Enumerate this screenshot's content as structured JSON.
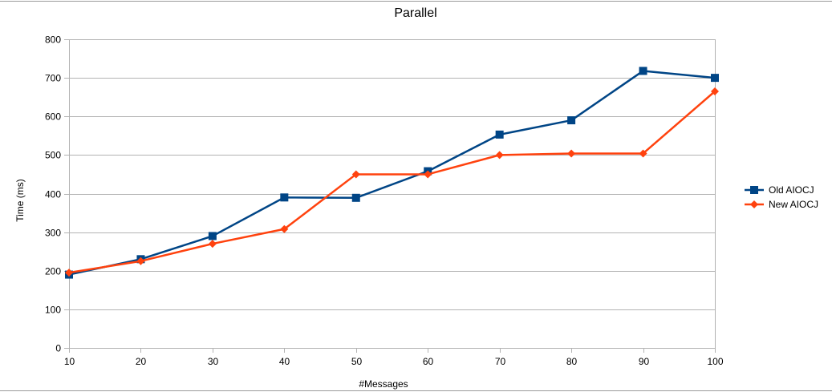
{
  "chart_data": {
    "type": "line",
    "title": "Parallel",
    "xlabel": "#Messages",
    "ylabel": "Time (ms)",
    "x": [
      10,
      20,
      30,
      40,
      50,
      60,
      70,
      80,
      90,
      100
    ],
    "xlim": [
      10,
      100
    ],
    "ylim": [
      0,
      800
    ],
    "y_ticks": [
      0,
      100,
      200,
      300,
      400,
      500,
      600,
      700,
      800
    ],
    "grid": true,
    "legend_position": "right",
    "series": [
      {
        "name": "Old AIOCJ",
        "color": "#004586",
        "marker": "square",
        "values": [
          190,
          230,
          290,
          390,
          389,
          458,
          553,
          590,
          718,
          700
        ]
      },
      {
        "name": "New AIOCJ",
        "color": "#ff420e",
        "marker": "diamond",
        "values": [
          195,
          225,
          270,
          308,
          450,
          450,
          500,
          504,
          504,
          665
        ]
      }
    ]
  }
}
